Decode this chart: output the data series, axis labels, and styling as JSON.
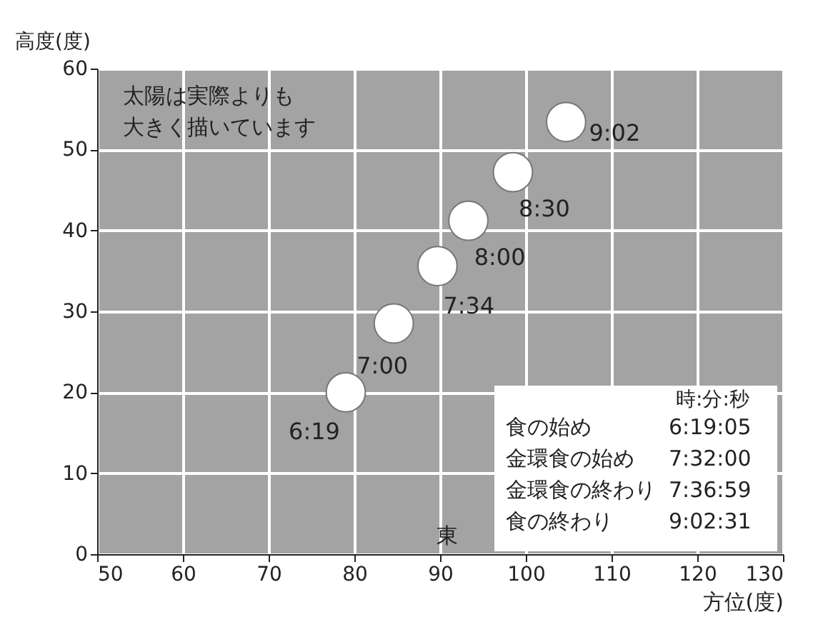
{
  "chart_data": {
    "type": "scatter",
    "xlabel": "方位(度)",
    "ylabel": "高度(度)",
    "x": [
      79,
      84.6,
      89.7,
      93.3,
      98.5,
      104.7
    ],
    "series": [
      {
        "color": "#ffffff",
        "values": [
          20,
          28.5,
          35.6,
          41.2,
          47.2,
          53.4
        ]
      }
    ],
    "marker": "circle",
    "grid": true,
    "xlim": [
      50,
      130
    ],
    "xticks": [
      50,
      60,
      70,
      80,
      90,
      100,
      110,
      120,
      130
    ],
    "ylim": [
      0,
      60
    ],
    "yticks": [
      0,
      10,
      20,
      30,
      40,
      50,
      60
    ],
    "annotations": [
      {
        "text": "6:19",
        "x": 79,
        "y": 20
      },
      {
        "text": "7:00",
        "x": 84.6,
        "y": 28.5
      },
      {
        "text": "7:34",
        "x": 89.7,
        "y": 35.6
      },
      {
        "text": "8:00",
        "x": 93.3,
        "y": 41.2
      },
      {
        "text": "8:30",
        "x": 98.5,
        "y": 47.2
      },
      {
        "text": "9:02",
        "x": 104.7,
        "y": 53.4
      },
      "太陽は実際よりも",
      "大きく描いています",
      "東",
      "時:分:秒",
      "食の始め",
      "6:19:05",
      "金環食の始め",
      "7:32:00",
      "金環食の終わり",
      "7:36:59",
      "食の終わり",
      "9:02:31"
    ]
  }
}
